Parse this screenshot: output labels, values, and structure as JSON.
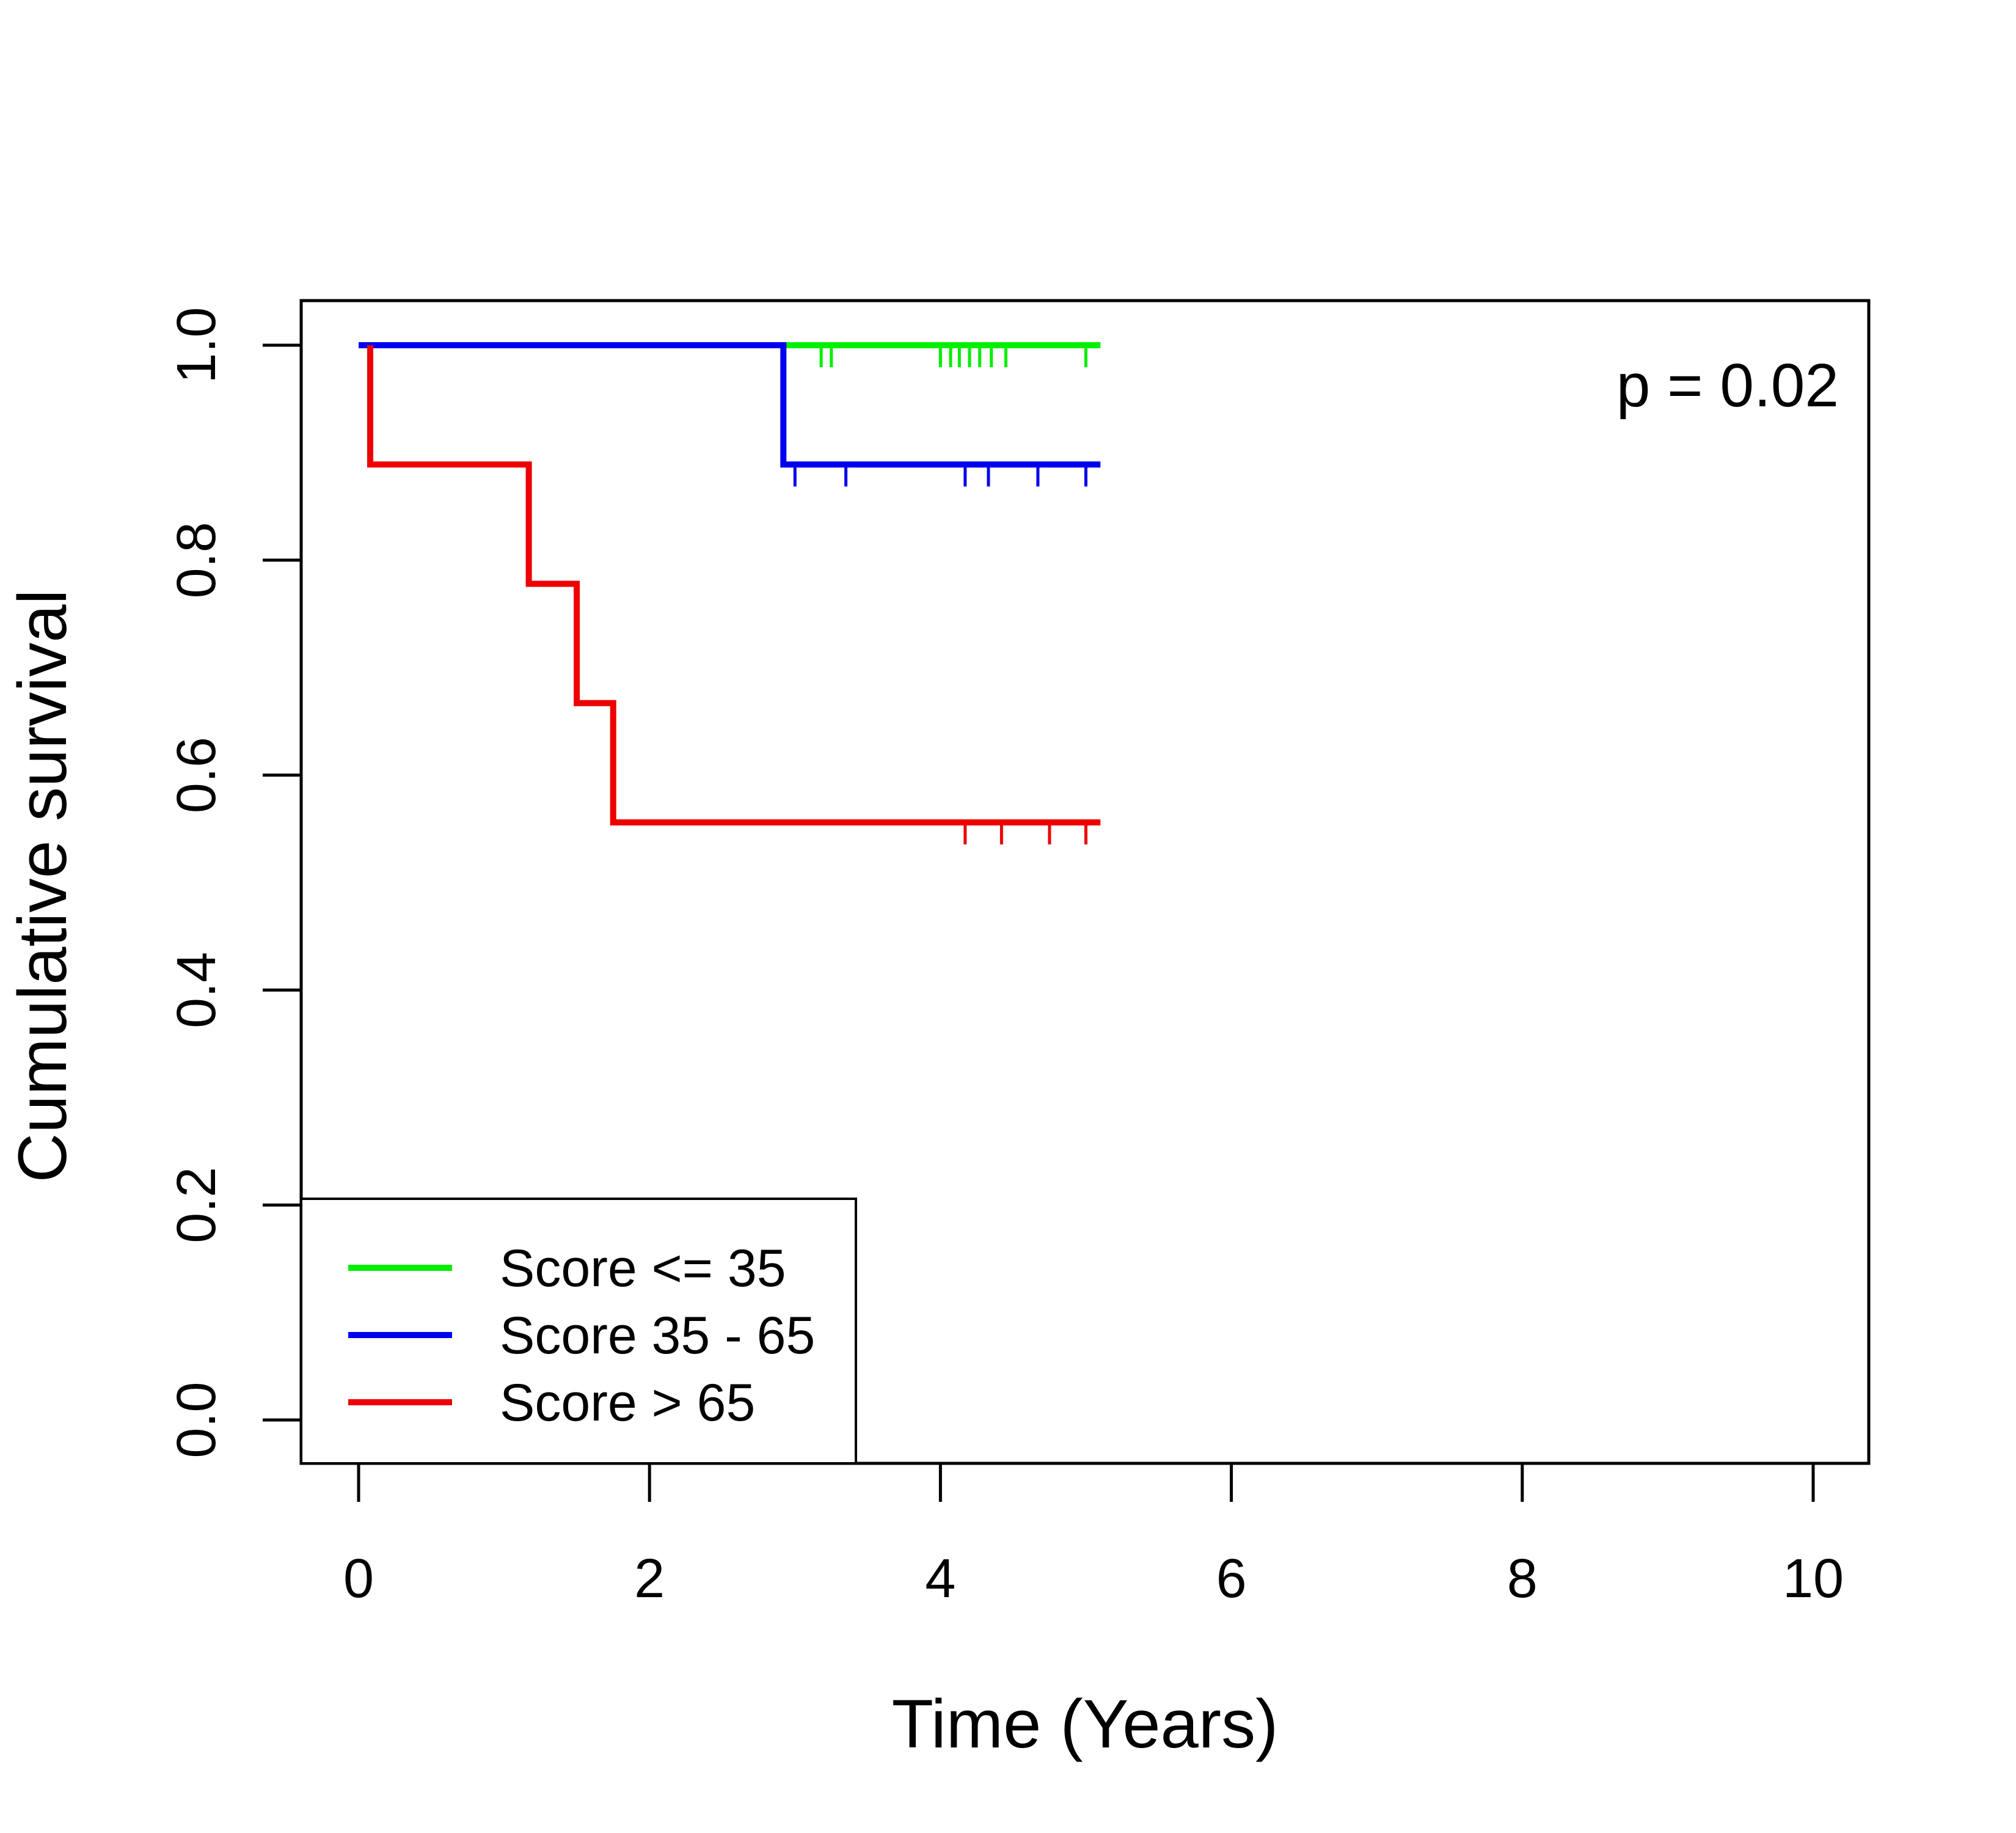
{
  "chart_data": {
    "type": "line",
    "subtype": "kaplan-meier step",
    "title": "",
    "xlabel": "Time (Years)",
    "ylabel": "Cumulative survival",
    "xlim": [
      0,
      10
    ],
    "ylim": [
      0,
      1.0
    ],
    "x_ticks": [
      0,
      2,
      4,
      6,
      8,
      10
    ],
    "y_ticks": [
      0.0,
      0.2,
      0.4,
      0.6,
      0.8,
      1.0
    ],
    "x_tick_labels": [
      "0",
      "2",
      "4",
      "6",
      "8",
      "10"
    ],
    "y_tick_labels": [
      "0.0",
      "0.2",
      "0.4",
      "0.6",
      "0.8",
      "1.0"
    ],
    "annotation": "p = 0.02",
    "grid": false,
    "legend_position": "bottom-left",
    "series": [
      {
        "name": "Score <= 35",
        "color": "#00ee00",
        "steps": [
          [
            0,
            1.0
          ],
          [
            5.1,
            1.0
          ]
        ],
        "censor_times": [
          3.18,
          3.25,
          4.0,
          4.07,
          4.13,
          4.2,
          4.27,
          4.35,
          4.45,
          5.0
        ]
      },
      {
        "name": "Score 35 - 65",
        "color": "#0000ee",
        "steps": [
          [
            0.0,
            1.0
          ],
          [
            2.92,
            1.0
          ],
          [
            2.92,
            0.889
          ],
          [
            5.1,
            0.889
          ]
        ],
        "censor_times": [
          3.0,
          3.35,
          4.17,
          4.33,
          4.67,
          5.0
        ]
      },
      {
        "name": "Score > 65",
        "color": "#ee0000",
        "steps": [
          [
            0.08,
            1.0
          ],
          [
            0.08,
            0.889
          ],
          [
            1.17,
            0.889
          ],
          [
            1.17,
            0.778
          ],
          [
            1.5,
            0.778
          ],
          [
            1.5,
            0.667
          ],
          [
            1.75,
            0.667
          ],
          [
            1.75,
            0.556
          ],
          [
            5.1,
            0.556
          ]
        ],
        "censor_times": [
          4.17,
          4.42,
          4.75,
          5.0
        ]
      }
    ]
  }
}
